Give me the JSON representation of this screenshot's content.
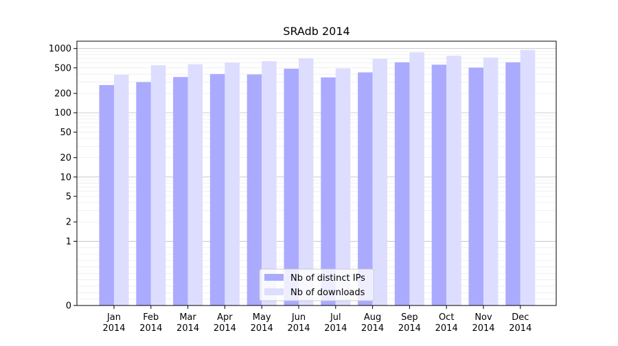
{
  "chart_data": {
    "type": "bar",
    "title": "SRAdb 2014",
    "xlabel": "",
    "ylabel": "",
    "yscale": "symlog",
    "ylim": [
      0,
      1300
    ],
    "yticks": [
      0,
      1,
      2,
      5,
      10,
      20,
      50,
      100,
      200,
      500,
      1000
    ],
    "ytick_labels": [
      "0",
      "1",
      "2",
      "5",
      "10",
      "20",
      "50",
      "100",
      "200",
      "500",
      "1000"
    ],
    "grid": true,
    "legend_position": "bottom-center",
    "categories": [
      {
        "month": "Jan",
        "year": "2014"
      },
      {
        "month": "Feb",
        "year": "2014"
      },
      {
        "month": "Mar",
        "year": "2014"
      },
      {
        "month": "Apr",
        "year": "2014"
      },
      {
        "month": "May",
        "year": "2014"
      },
      {
        "month": "Jun",
        "year": "2014"
      },
      {
        "month": "Jul",
        "year": "2014"
      },
      {
        "month": "Aug",
        "year": "2014"
      },
      {
        "month": "Sep",
        "year": "2014"
      },
      {
        "month": "Oct",
        "year": "2014"
      },
      {
        "month": "Nov",
        "year": "2014"
      },
      {
        "month": "Dec",
        "year": "2014"
      }
    ],
    "series": [
      {
        "name": "Nb of distinct IPs",
        "color": "#aaaaff",
        "values": [
          270,
          300,
          360,
          400,
          395,
          485,
          355,
          425,
          610,
          560,
          505,
          610
        ]
      },
      {
        "name": "Nb of downloads",
        "color": "#ddddff",
        "values": [
          390,
          550,
          570,
          605,
          635,
          705,
          490,
          690,
          870,
          770,
          725,
          950
        ]
      }
    ]
  }
}
